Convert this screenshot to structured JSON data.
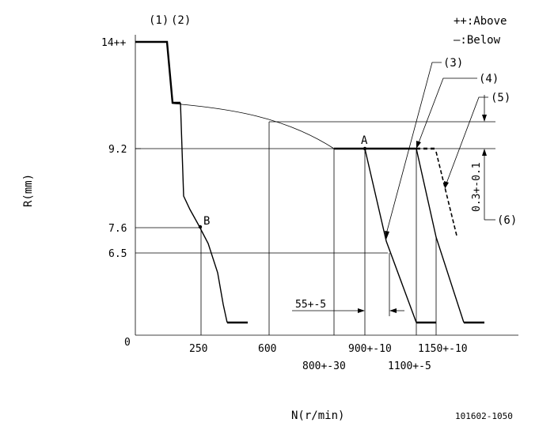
{
  "legend": {
    "above": "++:Above",
    "below": "—:Below"
  },
  "axes": {
    "ylabel": "R(mm)",
    "xlabel": "N(r/min)"
  },
  "y_ticks": [
    "14++",
    "9.2",
    "7.6",
    "6.5",
    "0"
  ],
  "x_ticks": [
    "250",
    "600",
    "900+-10",
    "1150+-10",
    "800+-30",
    "1100+-5"
  ],
  "callouts": [
    "(1)",
    "(2)",
    "(3)",
    "(4)",
    "(5)",
    "(6)"
  ],
  "points": [
    "A",
    "B"
  ],
  "dims": {
    "speed_gap": "55+-5",
    "rack_gap": "0.3+-0.1"
  },
  "figure_code": "101602-1050"
}
